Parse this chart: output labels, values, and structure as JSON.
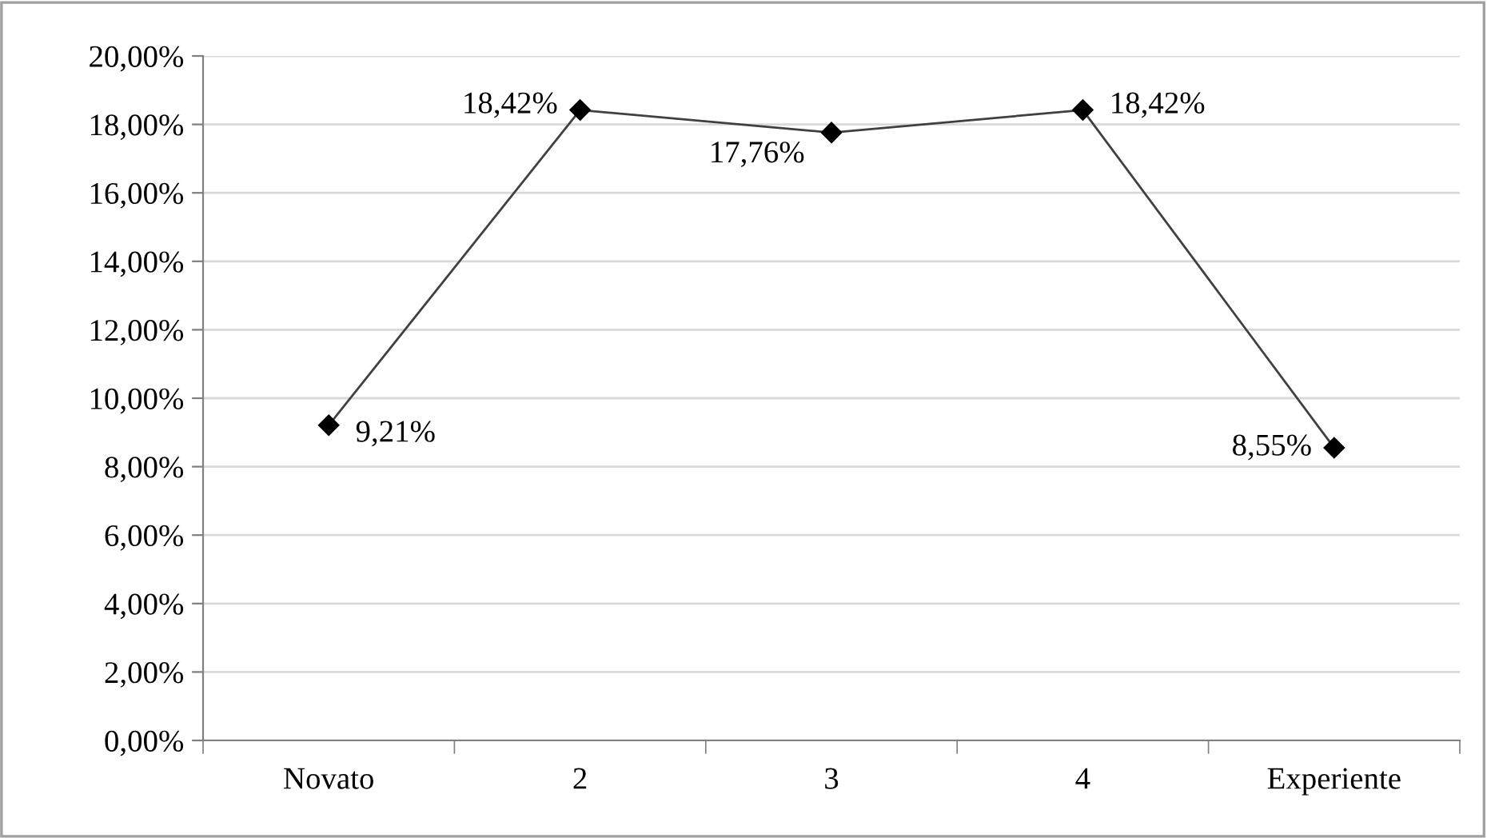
{
  "chart_data": {
    "type": "line",
    "categories": [
      "Novato",
      "2",
      "3",
      "4",
      "Experiente"
    ],
    "series": [
      {
        "color": "#404040",
        "values": [
          9.21,
          18.42,
          17.76,
          18.42,
          8.55
        ],
        "value_labels": [
          "9,21%",
          "18,42%",
          "17,76%",
          "18,42%",
          "8,55%"
        ]
      }
    ],
    "ylim": [
      0,
      20
    ],
    "yticks": [
      {
        "value": 0,
        "label": "0,00%"
      },
      {
        "value": 2,
        "label": "2,00%"
      },
      {
        "value": 4,
        "label": "4,00%"
      },
      {
        "value": 6,
        "label": "6,00%"
      },
      {
        "value": 8,
        "label": "8,00%"
      },
      {
        "value": 10,
        "label": "10,00%"
      },
      {
        "value": 12,
        "label": "12,00%"
      },
      {
        "value": 14,
        "label": "14,00%"
      },
      {
        "value": 16,
        "label": "16,00%"
      },
      {
        "value": 18,
        "label": "18,00%"
      },
      {
        "value": 20,
        "label": "20,00%"
      }
    ],
    "grid": "y",
    "legend": false,
    "marker": "diamond",
    "line_style": "solid"
  }
}
